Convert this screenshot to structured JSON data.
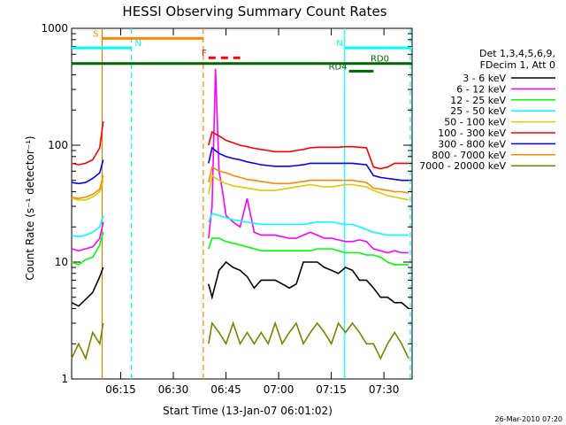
{
  "chart_data": {
    "type": "line",
    "title": "HESSI Observing Summary Count Rates",
    "ylabel": "Count Rate (s⁻¹ detector⁻¹)",
    "xlabel": "Start Time (13-Jan-07 06:01:02)",
    "yscale": "log",
    "ylim": [
      1,
      1000
    ],
    "xlim_minutes": [
      0,
      97
    ],
    "x_ticks": [
      {
        "label": "06:15",
        "value": 13.97
      },
      {
        "label": "06:30",
        "value": 28.97
      },
      {
        "label": "06:45",
        "value": 43.97
      },
      {
        "label": "07:00",
        "value": 58.97
      },
      {
        "label": "07:15",
        "value": 73.97
      },
      {
        "label": "07:30",
        "value": 88.97
      }
    ],
    "y_ticks": [
      {
        "label": "1",
        "value": 1
      },
      {
        "label": "10",
        "value": 10
      },
      {
        "label": "100",
        "value": 100
      },
      {
        "label": "1000",
        "value": 1000
      }
    ],
    "legend_header": [
      "Det 1,3,4,5,6,9,",
      "FDecim 1, Att 0"
    ],
    "legend_placement": "right",
    "series": [
      {
        "name": "3 - 6 keV",
        "color": "#000000",
        "x": [
          0,
          2,
          4,
          6,
          8,
          9,
          39,
          40,
          42,
          44,
          46,
          48,
          50,
          52,
          54,
          56,
          58,
          60,
          62,
          64,
          66,
          68,
          70,
          72,
          74,
          76,
          78,
          80,
          82,
          84,
          86,
          88,
          90,
          92,
          94,
          96
        ],
        "y": [
          4.5,
          4.2,
          4.8,
          5.5,
          7.5,
          9,
          6.5,
          5,
          8.5,
          10,
          9,
          8.5,
          7.5,
          6,
          7,
          7,
          7,
          6.5,
          6,
          6.5,
          10,
          10,
          10,
          9,
          8.5,
          8,
          9,
          8.5,
          7,
          7,
          6,
          5,
          5,
          4.5,
          4.5,
          4
        ]
      },
      {
        "name": "6 - 12 keV",
        "color": "#ff00ff",
        "x": [
          0,
          2,
          4,
          6,
          8,
          9,
          39,
          40,
          41,
          42,
          43,
          44,
          46,
          48,
          50,
          52,
          54,
          56,
          58,
          60,
          62,
          64,
          66,
          68,
          70,
          72,
          74,
          76,
          78,
          80,
          82,
          84,
          86,
          88,
          90,
          92,
          94,
          96
        ],
        "y": [
          13,
          12.5,
          13,
          13.5,
          16,
          22,
          16,
          30,
          450,
          60,
          40,
          25,
          22,
          20,
          35,
          18,
          17,
          17,
          17,
          16.5,
          16,
          16,
          17,
          18,
          17,
          16,
          16,
          15.5,
          15,
          15,
          15.5,
          15,
          13,
          12.5,
          12,
          12.5,
          12,
          12
        ]
      },
      {
        "name": "12 - 25 keV",
        "color": "#00ff00",
        "x": [
          0,
          2,
          4,
          6,
          8,
          9,
          39,
          40,
          42,
          44,
          46,
          48,
          50,
          52,
          54,
          56,
          58,
          60,
          62,
          64,
          66,
          68,
          70,
          72,
          74,
          76,
          78,
          80,
          82,
          84,
          86,
          88,
          90,
          92,
          94,
          96
        ],
        "y": [
          10,
          9.5,
          10.5,
          11,
          14,
          18,
          13,
          16,
          16,
          15,
          14.5,
          14,
          13.5,
          13,
          12.5,
          12.5,
          12.5,
          12.5,
          12.5,
          12.5,
          12.5,
          12.5,
          13,
          13,
          13,
          12.5,
          12,
          12,
          12,
          11.5,
          11.5,
          11,
          10,
          9.5,
          9.5,
          9.5
        ]
      },
      {
        "name": "25 - 50 keV",
        "color": "#00ffff",
        "x": [
          0,
          2,
          4,
          6,
          8,
          9,
          39,
          40,
          42,
          44,
          46,
          48,
          50,
          52,
          54,
          56,
          58,
          60,
          62,
          64,
          66,
          68,
          70,
          72,
          74,
          76,
          78,
          80,
          82,
          84,
          86,
          88,
          90,
          92,
          94,
          96
        ],
        "y": [
          17,
          16.5,
          17,
          18,
          20,
          25,
          22,
          26,
          25,
          24,
          23,
          22.5,
          22,
          21.5,
          21,
          21,
          21,
          21,
          21,
          21,
          21,
          21.5,
          22,
          22,
          22,
          21.5,
          21,
          21,
          20,
          19,
          18,
          17.5,
          17,
          17,
          17,
          17
        ]
      },
      {
        "name": "50 - 100 keV",
        "color": "#ddcc00",
        "x": [
          0,
          2,
          4,
          6,
          8,
          9,
          39,
          40,
          42,
          44,
          46,
          48,
          50,
          52,
          54,
          56,
          58,
          60,
          62,
          64,
          66,
          68,
          70,
          72,
          74,
          76,
          78,
          80,
          82,
          84,
          86,
          88,
          90,
          92,
          94,
          96
        ],
        "y": [
          35,
          34,
          34,
          36,
          40,
          50,
          38,
          55,
          50,
          47,
          45,
          44,
          43,
          42,
          41,
          41,
          41,
          42,
          43,
          44,
          45,
          46,
          45,
          44,
          44,
          45,
          46,
          46,
          45,
          44,
          41,
          39,
          37,
          36,
          35,
          34
        ]
      },
      {
        "name": "100 - 300 keV",
        "color": "#ff0000",
        "x": [
          0,
          2,
          4,
          6,
          8,
          9,
          39,
          40,
          42,
          44,
          46,
          48,
          50,
          52,
          54,
          56,
          58,
          60,
          62,
          64,
          66,
          68,
          70,
          72,
          74,
          76,
          78,
          80,
          82,
          84,
          86,
          88,
          90,
          92,
          94,
          96
        ],
        "y": [
          70,
          68,
          70,
          75,
          95,
          160,
          100,
          130,
          120,
          110,
          105,
          100,
          97,
          94,
          92,
          90,
          88,
          88,
          88,
          90,
          92,
          95,
          96,
          96,
          96,
          96,
          97,
          97,
          96,
          95,
          65,
          63,
          65,
          70,
          70,
          70
        ]
      },
      {
        "name": "300 - 800 keV",
        "color": "#0000ff",
        "x": [
          0,
          2,
          4,
          6,
          8,
          9,
          39,
          40,
          42,
          44,
          46,
          48,
          50,
          52,
          54,
          56,
          58,
          60,
          62,
          64,
          66,
          68,
          70,
          72,
          74,
          76,
          78,
          80,
          82,
          84,
          86,
          88,
          90,
          92,
          94,
          96
        ],
        "y": [
          48,
          47,
          48,
          52,
          58,
          75,
          70,
          95,
          85,
          80,
          77,
          75,
          72,
          70,
          68,
          67,
          66,
          66,
          66,
          67,
          68,
          70,
          70,
          70,
          70,
          70,
          70,
          70,
          69,
          68,
          55,
          53,
          52,
          51,
          50,
          50
        ]
      },
      {
        "name": "800 - 7000 keV",
        "color": "#ff8800",
        "x": [
          0,
          2,
          4,
          6,
          8,
          9,
          39,
          40,
          42,
          44,
          46,
          48,
          50,
          52,
          54,
          56,
          58,
          60,
          62,
          64,
          66,
          68,
          70,
          72,
          74,
          76,
          78,
          80,
          82,
          84,
          86,
          88,
          90,
          92,
          94,
          96
        ],
        "y": [
          36,
          35,
          36,
          38,
          42,
          55,
          48,
          65,
          60,
          58,
          55,
          53,
          51,
          50,
          49,
          48,
          47,
          47,
          47,
          48,
          49,
          50,
          50,
          50,
          50,
          50,
          50,
          50,
          49,
          48,
          43,
          42,
          41,
          40,
          40,
          39
        ]
      },
      {
        "name": "7000 - 20000 keV",
        "color": "#808000",
        "x": [
          0,
          2,
          4,
          6,
          8,
          9,
          39,
          40,
          42,
          44,
          46,
          48,
          50,
          52,
          54,
          56,
          58,
          60,
          62,
          64,
          66,
          68,
          70,
          72,
          74,
          76,
          78,
          80,
          82,
          84,
          86,
          88,
          90,
          92,
          94,
          96
        ],
        "y": [
          1.5,
          2,
          1.5,
          2.5,
          2,
          3,
          2,
          3,
          2.5,
          2,
          3,
          2,
          2.5,
          2,
          2.5,
          2,
          3,
          2,
          2.5,
          3,
          2,
          2.5,
          3,
          2.5,
          2,
          3,
          2.5,
          3,
          2.5,
          2,
          2,
          1.5,
          2,
          2.5,
          2,
          1.5
        ]
      }
    ],
    "flag_bars": [
      {
        "label": "S",
        "color": "#ff8800",
        "start": 8.7,
        "end": 37.5,
        "y": 820
      },
      {
        "label": "N",
        "color": "#00ffff",
        "start": 0,
        "end": 17,
        "y": 680
      },
      {
        "label": "N",
        "color": "#00ffff",
        "start": 77.8,
        "end": 97,
        "y": 680
      },
      {
        "label": "F",
        "color": "#ff0000",
        "start": 39,
        "end": 48,
        "y": 560,
        "dashed": true
      },
      {
        "label": "RD0",
        "color": "#006600",
        "start": 0,
        "end": 97,
        "y": 500
      },
      {
        "label": "RD4",
        "color": "#006600",
        "start": 79,
        "end": 86,
        "y": 430
      }
    ],
    "vlines": [
      {
        "x": 8.7,
        "color": "#cc8800",
        "style": "solid"
      },
      {
        "x": 17,
        "color": "#00ffff",
        "style": "dashed"
      },
      {
        "x": 37.5,
        "color": "#ff8800",
        "style": "dashed"
      },
      {
        "x": 77.8,
        "color": "#00ffff",
        "style": "solid"
      },
      {
        "x": 96.5,
        "color": "#00ffff",
        "style": "dashed"
      }
    ],
    "grid": false
  },
  "footer": {
    "timestamp": "26-Mar-2010 07:20"
  }
}
